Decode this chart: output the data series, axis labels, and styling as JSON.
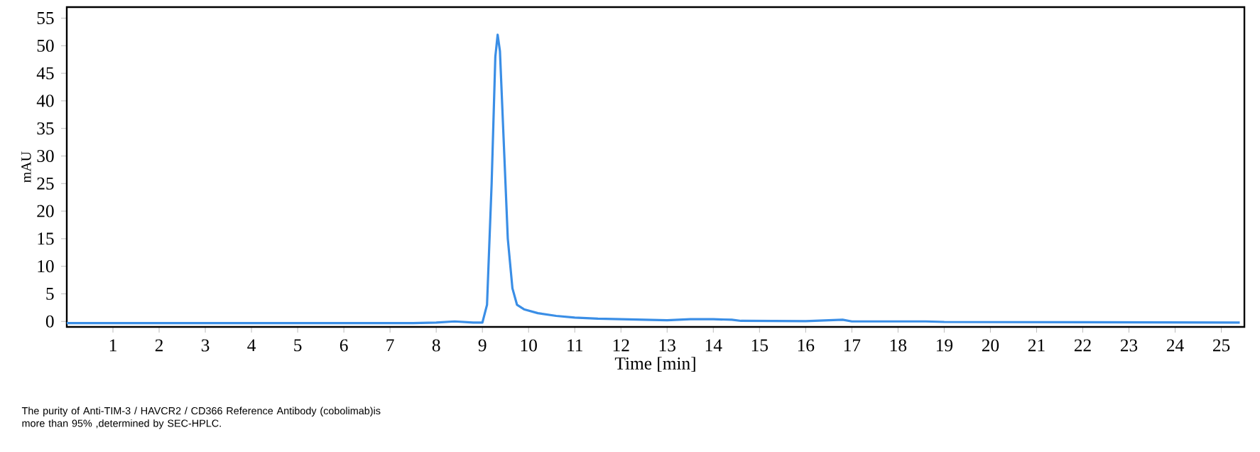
{
  "chart_data": {
    "type": "line",
    "xlabel": "Time [min]",
    "ylabel": "mAU",
    "x": [
      0,
      7.5,
      8.0,
      8.4,
      8.8,
      9.0,
      9.1,
      9.2,
      9.28,
      9.33,
      9.38,
      9.45,
      9.55,
      9.65,
      9.75,
      9.9,
      10.2,
      10.6,
      11,
      11.5,
      12,
      13,
      13.5,
      14,
      14.4,
      14.6,
      16,
      16.8,
      17,
      18.6,
      19,
      25.4
    ],
    "values": [
      -0.3,
      -0.3,
      -0.2,
      0,
      -0.2,
      -0.2,
      3,
      25,
      48,
      52,
      49,
      35,
      15,
      6,
      3,
      2.2,
      1.5,
      1.0,
      0.7,
      0.5,
      0.4,
      0.2,
      0.4,
      0.4,
      0.3,
      0.1,
      0.05,
      0.3,
      0,
      0,
      -0.1,
      -0.2
    ],
    "color": "#3a8ee6",
    "xlim": [
      0,
      25.5
    ],
    "ylim": [
      -1,
      57
    ],
    "xticks": [
      1,
      2,
      3,
      4,
      5,
      6,
      7,
      8,
      9,
      10,
      11,
      12,
      13,
      14,
      15,
      16,
      17,
      18,
      19,
      20,
      21,
      22,
      23,
      24,
      25
    ],
    "yticks": [
      0,
      5,
      10,
      15,
      20,
      25,
      30,
      35,
      40,
      45,
      50,
      55
    ],
    "annotations": [
      "The purity of Anti-TIM-3 / HAVCR2 / CD366 Reference Antibody (cobolimab)is more than 95% ,determined by SEC-HPLC."
    ]
  }
}
